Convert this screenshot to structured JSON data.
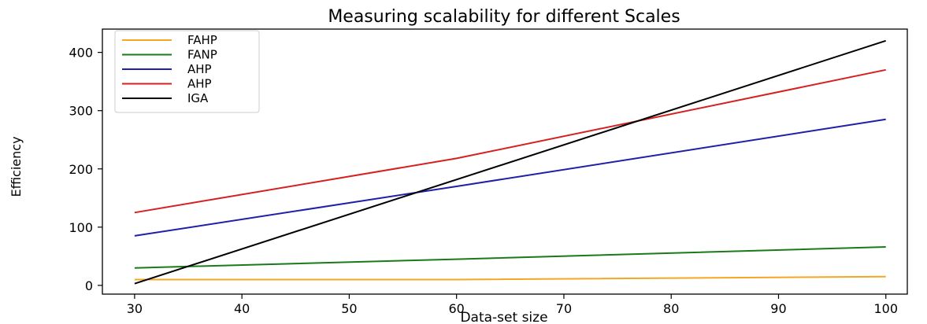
{
  "chart_data": {
    "type": "line",
    "title": "Measuring scalability for different Scales",
    "xlabel": "Data-set size",
    "ylabel": "Efficiency",
    "xlim": [
      27,
      102
    ],
    "ylim": [
      -15,
      440
    ],
    "xticks": [
      30,
      40,
      50,
      60,
      70,
      80,
      90,
      100
    ],
    "yticks": [
      0,
      100,
      200,
      300,
      400
    ],
    "grid": false,
    "legend_position": "top-left",
    "series": [
      {
        "name": "FAHP",
        "color": "#f5a623",
        "x": [
          30,
          60,
          100
        ],
        "y": [
          10,
          10,
          15
        ]
      },
      {
        "name": "FANP",
        "color": "#1a7a1a",
        "x": [
          30,
          60,
          100
        ],
        "y": [
          30,
          45,
          66
        ]
      },
      {
        "name": "AHP",
        "color": "#1f1fa8",
        "x": [
          30,
          60,
          100
        ],
        "y": [
          85,
          170,
          285
        ]
      },
      {
        "name": "AHP",
        "color": "#d62020",
        "x": [
          30,
          60,
          100
        ],
        "y": [
          125,
          218,
          370
        ]
      },
      {
        "name": "IGA",
        "color": "#000000",
        "x": [
          30,
          100
        ],
        "y": [
          3,
          420
        ]
      }
    ]
  }
}
